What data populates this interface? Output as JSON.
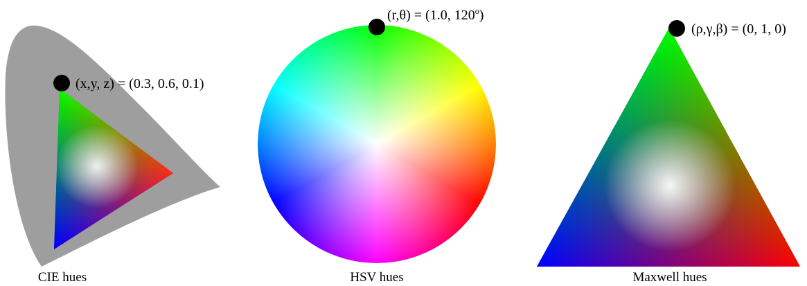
{
  "panels": {
    "cie": {
      "point_label": "(x,y, z) = (0.3, 0.6, 0.1)",
      "caption": "CIE hues",
      "locus_color": "#9e9e9e"
    },
    "hsv": {
      "point_label": "(r,θ) = (1.0, 120",
      "point_label_degree": "o",
      "point_label_close": ")",
      "caption": "HSV hues"
    },
    "maxwell": {
      "point_label": "(ρ,γ,β) = (0, 1, 0)",
      "caption": "Maxwell hues"
    }
  },
  "colors": {
    "red": "#ff0000",
    "green": "#00ff00",
    "blue": "#0000ff",
    "white": "#ffffff",
    "marker": "#000000"
  }
}
